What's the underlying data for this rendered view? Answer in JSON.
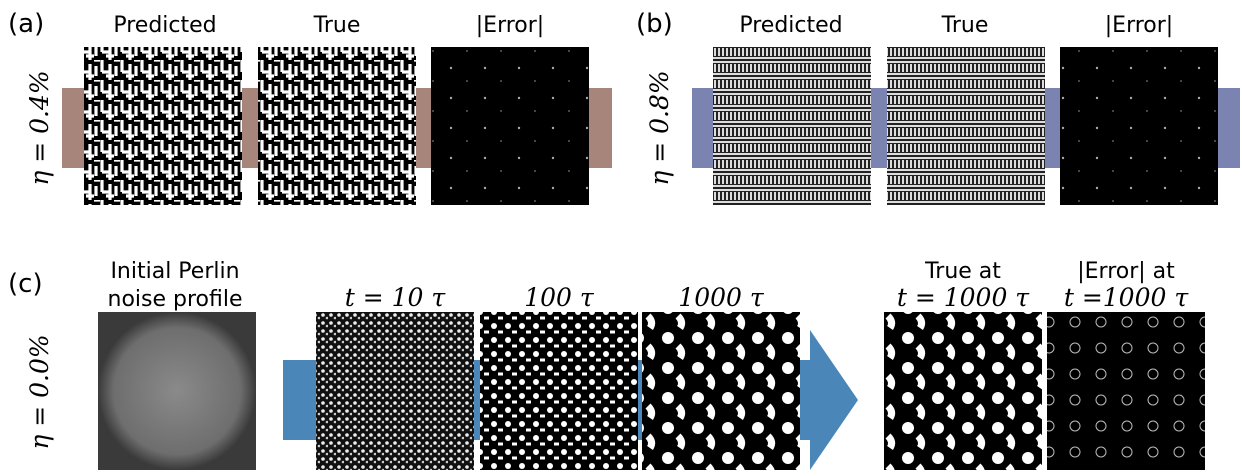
{
  "panels": {
    "a": {
      "label": "(a)",
      "titles": [
        "Predicted",
        "True",
        "|Error|"
      ],
      "eta": "η = 0.4%"
    },
    "b": {
      "label": "(b)",
      "titles": [
        "Predicted",
        "True",
        "|Error|"
      ],
      "eta": "η = 0.8%"
    },
    "c": {
      "label": "(c)",
      "initial_title": [
        "Initial Perlin",
        "noise profile"
      ],
      "times": [
        "t = 10 τ",
        "100 τ",
        "1000 τ"
      ],
      "true_title": [
        "True at",
        "t = 1000 τ"
      ],
      "error_title": [
        "|Error| at",
        "t =1000 τ"
      ],
      "eta": "η = 0.0%"
    }
  }
}
